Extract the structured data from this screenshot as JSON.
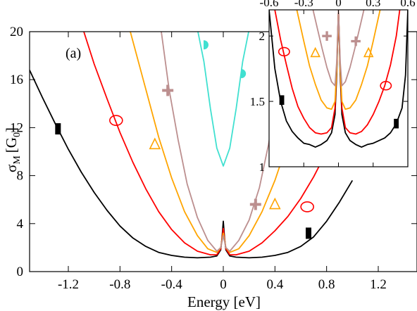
{
  "chart_data": [
    {
      "type": "line",
      "panel": "main",
      "annotation": "(a)",
      "title": "",
      "xlabel": "Energy [eV]",
      "ylabel": "σM [G0]",
      "ylabel_main": "σ",
      "ylabel_sub": "M",
      "ylabel_unit": "[G",
      "ylabel_unit_sub": "0",
      "ylabel_close": "]",
      "xlim": [
        -1.5,
        1.5
      ],
      "ylim": [
        0,
        20
      ],
      "xticks": [
        -1.2,
        -0.8,
        -0.4,
        0,
        0.4,
        0.8,
        1.2
      ],
      "xtick_labels": [
        "-1.2",
        "-0.8",
        "-0.4",
        "0",
        "0.4",
        "0.8",
        "1.2"
      ],
      "yticks": [
        0,
        4,
        8,
        12,
        16,
        20
      ],
      "ytick_labels": [
        "0",
        "4",
        "8",
        "12",
        "16",
        "20"
      ],
      "grid": false,
      "series": [
        {
          "color": "#000000",
          "marker": "filled-rectangle",
          "marker_points": [
            [
              -1.28,
              11.9
            ],
            [
              0.66,
              3.2
            ]
          ],
          "points": [
            [
              -1.5,
              16.8
            ],
            [
              -1.4,
              14.5
            ],
            [
              -1.3,
              12.3
            ],
            [
              -1.2,
              10.2
            ],
            [
              -1.1,
              8.3
            ],
            [
              -1.0,
              6.6
            ],
            [
              -0.9,
              5.1
            ],
            [
              -0.8,
              3.8
            ],
            [
              -0.7,
              2.8
            ],
            [
              -0.6,
              2.1
            ],
            [
              -0.5,
              1.6
            ],
            [
              -0.4,
              1.35
            ],
            [
              -0.3,
              1.2
            ],
            [
              -0.2,
              1.15
            ],
            [
              -0.1,
              1.2
            ],
            [
              -0.05,
              1.3
            ],
            [
              -0.02,
              1.8
            ],
            [
              -0.01,
              2.8
            ],
            [
              0,
              4.2
            ],
            [
              0.01,
              2.8
            ],
            [
              0.02,
              1.8
            ],
            [
              0.05,
              1.3
            ],
            [
              0.1,
              1.2
            ],
            [
              0.2,
              1.15
            ],
            [
              0.3,
              1.2
            ],
            [
              0.4,
              1.35
            ],
            [
              0.5,
              1.6
            ],
            [
              0.6,
              2.1
            ],
            [
              0.7,
              2.9
            ],
            [
              0.8,
              4.2
            ],
            [
              0.9,
              5.8
            ],
            [
              1.0,
              7.6
            ]
          ]
        },
        {
          "color": "#ff0000",
          "marker": "open-circle",
          "marker_points": [
            [
              -0.83,
              12.6
            ],
            [
              0.65,
              5.4
            ]
          ],
          "points": [
            [
              -1.08,
              20
            ],
            [
              -1.0,
              17.3
            ],
            [
              -0.9,
              14.4
            ],
            [
              -0.8,
              11.6
            ],
            [
              -0.7,
              9.1
            ],
            [
              -0.6,
              6.9
            ],
            [
              -0.5,
              5.0
            ],
            [
              -0.4,
              3.5
            ],
            [
              -0.3,
              2.4
            ],
            [
              -0.2,
              1.7
            ],
            [
              -0.1,
              1.4
            ],
            [
              -0.05,
              1.4
            ],
            [
              -0.02,
              1.9
            ],
            [
              -0.01,
              2.7
            ],
            [
              0,
              3.6
            ],
            [
              0.01,
              2.7
            ],
            [
              0.02,
              1.9
            ],
            [
              0.05,
              1.4
            ],
            [
              0.1,
              1.4
            ],
            [
              0.2,
              1.7
            ],
            [
              0.3,
              2.4
            ],
            [
              0.4,
              3.4
            ],
            [
              0.5,
              4.6
            ],
            [
              0.6,
              6.1
            ],
            [
              0.7,
              7.9
            ],
            [
              0.8,
              10.0
            ],
            [
              0.9,
              12.6
            ],
            [
              1.0,
              15.6
            ],
            [
              1.1,
              18.9
            ],
            [
              1.13,
              20
            ]
          ]
        },
        {
          "color": "#ffa500",
          "marker": "open-triangle",
          "marker_points": [
            [
              -0.53,
              10.6
            ],
            [
              0.4,
              5.6
            ]
          ],
          "points": [
            [
              -0.72,
              20
            ],
            [
              -0.6,
              15.2
            ],
            [
              -0.5,
              11.2
            ],
            [
              -0.4,
              7.8
            ],
            [
              -0.3,
              5.0
            ],
            [
              -0.2,
              3.0
            ],
            [
              -0.12,
              1.9
            ],
            [
              -0.05,
              1.6
            ],
            [
              -0.02,
              2.0
            ],
            [
              0,
              3.2
            ],
            [
              0.02,
              2.0
            ],
            [
              0.05,
              1.6
            ],
            [
              0.12,
              1.9
            ],
            [
              0.2,
              3.0
            ],
            [
              0.3,
              5.0
            ],
            [
              0.4,
              7.6
            ],
            [
              0.5,
              10.8
            ],
            [
              0.6,
              14.6
            ],
            [
              0.7,
              19.0
            ],
            [
              0.72,
              20
            ]
          ]
        },
        {
          "color": "#bc8f8f",
          "marker": "plus",
          "marker_points": [
            [
              -0.43,
              15.1
            ],
            [
              0.25,
              5.6
            ]
          ],
          "points": [
            [
              -0.48,
              20
            ],
            [
              -0.42,
              15.2
            ],
            [
              -0.35,
              11.0
            ],
            [
              -0.28,
              7.3
            ],
            [
              -0.2,
              4.5
            ],
            [
              -0.12,
              2.6
            ],
            [
              -0.05,
              1.7
            ],
            [
              -0.02,
              2.0
            ],
            [
              0,
              3.0
            ],
            [
              0.02,
              2.0
            ],
            [
              0.05,
              1.7
            ],
            [
              0.12,
              2.6
            ],
            [
              0.2,
              4.3
            ],
            [
              0.28,
              7.0
            ],
            [
              0.35,
              10.6
            ],
            [
              0.42,
              15.0
            ],
            [
              0.47,
              20
            ]
          ]
        },
        {
          "color": "#40e0d0",
          "marker": "half-circle",
          "marker_points": [
            [
              -0.15,
              18.9
            ],
            [
              0.14,
              16.5
            ]
          ],
          "points": [
            [
              -0.2,
              20.2
            ],
            [
              -0.15,
              17.5
            ],
            [
              -0.1,
              13.6
            ],
            [
              -0.05,
              10.3
            ],
            [
              0,
              8.8
            ],
            [
              0.05,
              10.3
            ],
            [
              0.1,
              13.6
            ],
            [
              0.15,
              17.5
            ],
            [
              0.2,
              20.2
            ]
          ]
        }
      ]
    },
    {
      "type": "line",
      "panel": "inset",
      "title": "",
      "xlabel": "",
      "ylabel": "",
      "xlim": [
        -0.6,
        0.6
      ],
      "ylim": [
        1,
        2.2
      ],
      "xticks": [
        -0.6,
        -0.3,
        0,
        0.3,
        0.6
      ],
      "xtick_labels": [
        "-0.6",
        "-0.3",
        "0",
        "0.3",
        "0.6"
      ],
      "yticks": [
        1,
        1.5,
        2
      ],
      "ytick_labels": [
        "1",
        "1.5",
        "2"
      ],
      "grid": false,
      "series": [
        {
          "color": "#000000",
          "marker": "filled-rectangle",
          "marker_points": [
            [
              -0.49,
              1.51
            ],
            [
              0.5,
              1.33
            ]
          ],
          "points": [
            [
              -0.6,
              2.2
            ],
            [
              -0.55,
              1.75
            ],
            [
              -0.5,
              1.5
            ],
            [
              -0.45,
              1.35
            ],
            [
              -0.4,
              1.27
            ],
            [
              -0.35,
              1.22
            ],
            [
              -0.3,
              1.18
            ],
            [
              -0.25,
              1.17
            ],
            [
              -0.2,
              1.15
            ],
            [
              -0.15,
              1.17
            ],
            [
              -0.1,
              1.2
            ],
            [
              -0.06,
              1.26
            ],
            [
              -0.03,
              1.4
            ],
            [
              -0.015,
              1.7
            ],
            [
              0,
              2.2
            ],
            [
              0.015,
              1.7
            ],
            [
              0.03,
              1.4
            ],
            [
              0.06,
              1.26
            ],
            [
              0.1,
              1.2
            ],
            [
              0.15,
              1.17
            ],
            [
              0.2,
              1.15
            ],
            [
              0.25,
              1.17
            ],
            [
              0.3,
              1.18
            ],
            [
              0.35,
              1.2
            ],
            [
              0.4,
              1.22
            ],
            [
              0.45,
              1.26
            ],
            [
              0.5,
              1.33
            ],
            [
              0.55,
              1.45
            ],
            [
              0.58,
              1.7
            ],
            [
              0.6,
              2.2
            ]
          ]
        },
        {
          "color": "#ff0000",
          "marker": "open-circle",
          "marker_points": [
            [
              -0.47,
              1.88
            ],
            [
              0.41,
              1.62
            ]
          ],
          "points": [
            [
              -0.55,
              2.2
            ],
            [
              -0.5,
              1.97
            ],
            [
              -0.45,
              1.78
            ],
            [
              -0.4,
              1.6
            ],
            [
              -0.35,
              1.46
            ],
            [
              -0.3,
              1.37
            ],
            [
              -0.25,
              1.3
            ],
            [
              -0.2,
              1.26
            ],
            [
              -0.15,
              1.25
            ],
            [
              -0.1,
              1.26
            ],
            [
              -0.06,
              1.3
            ],
            [
              -0.03,
              1.45
            ],
            [
              -0.015,
              1.75
            ],
            [
              0,
              2.2
            ],
            [
              0.015,
              1.75
            ],
            [
              0.03,
              1.45
            ],
            [
              0.06,
              1.3
            ],
            [
              0.1,
              1.26
            ],
            [
              0.15,
              1.25
            ],
            [
              0.2,
              1.27
            ],
            [
              0.25,
              1.32
            ],
            [
              0.3,
              1.4
            ],
            [
              0.35,
              1.5
            ],
            [
              0.4,
              1.62
            ],
            [
              0.45,
              1.78
            ],
            [
              0.5,
              2.0
            ],
            [
              0.53,
              2.2
            ]
          ]
        },
        {
          "color": "#ffa500",
          "marker": "open-triangle",
          "marker_points": [
            [
              -0.2,
              1.87
            ],
            [
              0.26,
              1.87
            ]
          ],
          "points": [
            [
              -0.36,
              2.2
            ],
            [
              -0.3,
              1.96
            ],
            [
              -0.25,
              1.77
            ],
            [
              -0.2,
              1.63
            ],
            [
              -0.15,
              1.51
            ],
            [
              -0.1,
              1.45
            ],
            [
              -0.06,
              1.44
            ],
            [
              -0.03,
              1.5
            ],
            [
              -0.015,
              1.75
            ],
            [
              0,
              2.2
            ],
            [
              0.015,
              1.75
            ],
            [
              0.03,
              1.5
            ],
            [
              0.06,
              1.44
            ],
            [
              0.1,
              1.45
            ],
            [
              0.15,
              1.51
            ],
            [
              0.2,
              1.63
            ],
            [
              0.25,
              1.77
            ],
            [
              0.3,
              1.96
            ],
            [
              0.36,
              2.2
            ]
          ]
        },
        {
          "color": "#bc8f8f",
          "marker": "plus",
          "marker_points": [
            [
              -0.1,
              2.0
            ],
            [
              0.15,
              1.96
            ]
          ],
          "points": [
            [
              -0.22,
              2.2
            ],
            [
              -0.18,
              2.05
            ],
            [
              -0.14,
              1.9
            ],
            [
              -0.1,
              1.76
            ],
            [
              -0.06,
              1.65
            ],
            [
              -0.03,
              1.62
            ],
            [
              -0.015,
              1.8
            ],
            [
              0,
              2.2
            ],
            [
              0.015,
              1.8
            ],
            [
              0.03,
              1.62
            ],
            [
              0.06,
              1.65
            ],
            [
              0.1,
              1.76
            ],
            [
              0.14,
              1.9
            ],
            [
              0.18,
              2.05
            ],
            [
              0.22,
              2.2
            ]
          ]
        }
      ]
    }
  ]
}
